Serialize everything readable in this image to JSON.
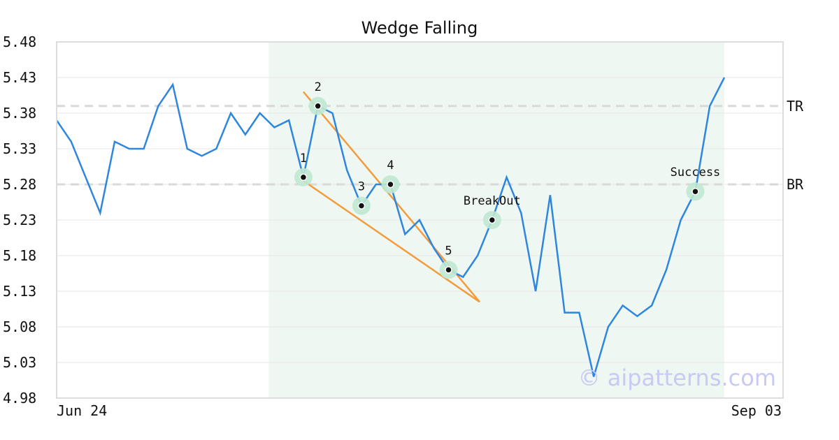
{
  "chart_data": {
    "type": "line",
    "title": "Wedge Falling",
    "xlabel": "",
    "ylabel": "",
    "x_tick_labels": [
      "Jun 24",
      "Sep 03"
    ],
    "y_ticks": [
      "5.48",
      "5.43",
      "5.38",
      "5.33",
      "5.28",
      "5.23",
      "5.18",
      "5.13",
      "5.08",
      "5.03",
      "4.98"
    ],
    "ylim": [
      4.98,
      5.48
    ],
    "grid": "horizontal",
    "series": [
      {
        "color": "#2e86de",
        "values": [
          5.37,
          5.34,
          5.29,
          5.24,
          5.34,
          5.33,
          5.33,
          5.39,
          5.42,
          5.33,
          5.32,
          5.33,
          5.38,
          5.35,
          5.38,
          5.36,
          5.37,
          5.29,
          5.39,
          5.38,
          5.3,
          5.25,
          5.28,
          5.28,
          5.21,
          5.23,
          5.19,
          5.16,
          5.15,
          5.18,
          5.23,
          5.29,
          5.24,
          5.13,
          5.265,
          5.1,
          5.1,
          5.01,
          5.08,
          5.11,
          5.095,
          5.11,
          5.16,
          5.23,
          5.27,
          5.39,
          5.43
        ]
      }
    ],
    "shaded_region": {
      "from_index": 15,
      "to_index": 46,
      "color": "#eef7f2"
    },
    "reference_lines": [
      {
        "label": "TR",
        "value": 5.39
      },
      {
        "label": "BR",
        "value": 5.28
      }
    ],
    "trend_lines": [
      {
        "color": "#f39c3d",
        "from": [
          17,
          5.41
        ],
        "to": [
          29,
          5.115
        ]
      },
      {
        "color": "#f39c3d",
        "from": [
          17,
          5.285
        ],
        "to": [
          29,
          5.115
        ]
      }
    ],
    "marked_points": [
      {
        "label": "1",
        "index": 17,
        "value": 5.29
      },
      {
        "label": "2",
        "index": 18,
        "value": 5.39
      },
      {
        "label": "3",
        "index": 21,
        "value": 5.25
      },
      {
        "label": "4",
        "index": 23,
        "value": 5.28
      },
      {
        "label": "5",
        "index": 27,
        "value": 5.16
      },
      {
        "label": "BreakOut",
        "index": 30,
        "value": 5.23
      },
      {
        "label": "Success",
        "index": 44,
        "value": 5.27
      }
    ],
    "watermark": "© aipatterns.com",
    "colors": {
      "line": "#2e86de",
      "trend": "#f39c3d",
      "marker_halo": "#bfe8d3",
      "reference": "#d9d9d9",
      "grid": "#e6e6e6",
      "frame": "#dddddd"
    }
  }
}
